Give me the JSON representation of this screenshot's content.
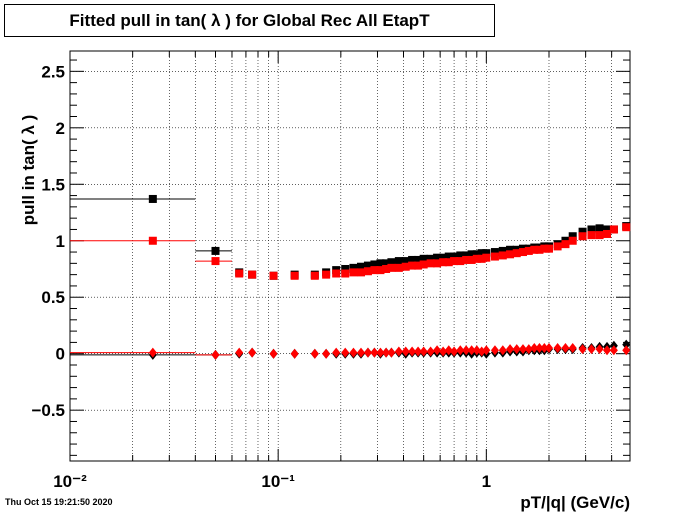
{
  "chart_data": {
    "type": "scatter",
    "title": "Fitted pull in tan( λ ) for Global Rec All EtapT",
    "xlabel": "pT/|q| (GeV/c)",
    "ylabel": "pull in tan( λ )",
    "x_scale": "log",
    "xlim": [
      0.01,
      4.9
    ],
    "ylim": [
      -0.95,
      2.68
    ],
    "grid": true,
    "x_tick_labels": [
      "10⁻²",
      "10⁻¹",
      "1"
    ],
    "y_ticks": [
      -0.5,
      0,
      0.5,
      1,
      1.5,
      2,
      2.5
    ],
    "y_tick_labels": [
      "−0.5",
      "0",
      "0.5",
      "1",
      "1.5",
      "2",
      "2.5"
    ],
    "series": [
      {
        "color": "#000000",
        "marker": "square",
        "x": [
          0.025,
          0.05,
          0.065,
          0.075,
          0.095,
          0.12,
          0.15,
          0.17,
          0.19,
          0.21,
          0.23,
          0.25,
          0.27,
          0.29,
          0.31,
          0.33,
          0.35,
          0.38,
          0.41,
          0.44,
          0.47,
          0.5,
          0.54,
          0.58,
          0.62,
          0.66,
          0.7,
          0.75,
          0.8,
          0.85,
          0.9,
          0.95,
          1.0,
          1.1,
          1.2,
          1.3,
          1.4,
          1.5,
          1.6,
          1.7,
          1.8,
          1.9,
          2.0,
          2.2,
          2.4,
          2.6,
          2.9,
          3.2,
          3.5,
          3.8,
          4.1,
          4.7
        ],
        "y": [
          1.37,
          0.91,
          0.72,
          0.7,
          0.69,
          0.7,
          0.7,
          0.72,
          0.74,
          0.75,
          0.76,
          0.77,
          0.78,
          0.79,
          0.8,
          0.8,
          0.81,
          0.82,
          0.82,
          0.83,
          0.83,
          0.84,
          0.84,
          0.85,
          0.85,
          0.86,
          0.86,
          0.87,
          0.87,
          0.88,
          0.88,
          0.89,
          0.89,
          0.9,
          0.91,
          0.92,
          0.92,
          0.93,
          0.93,
          0.94,
          0.94,
          0.95,
          0.95,
          0.97,
          1.0,
          1.04,
          1.08,
          1.1,
          1.11,
          1.1,
          1.1,
          1.13
        ],
        "xerr_first": [
          0.01,
          0.04
        ],
        "xerr_second": [
          0.04,
          0.06
        ]
      },
      {
        "color": "#ff0000",
        "marker": "square",
        "x": [
          0.025,
          0.05,
          0.065,
          0.075,
          0.095,
          0.12,
          0.15,
          0.17,
          0.19,
          0.21,
          0.23,
          0.25,
          0.27,
          0.29,
          0.31,
          0.33,
          0.35,
          0.38,
          0.41,
          0.44,
          0.47,
          0.5,
          0.54,
          0.58,
          0.62,
          0.66,
          0.7,
          0.75,
          0.8,
          0.85,
          0.9,
          0.95,
          1.0,
          1.1,
          1.2,
          1.3,
          1.4,
          1.5,
          1.6,
          1.7,
          1.8,
          1.9,
          2.0,
          2.2,
          2.4,
          2.6,
          2.9,
          3.2,
          3.5,
          3.8,
          4.1,
          4.7
        ],
        "y": [
          1.0,
          0.82,
          0.71,
          0.7,
          0.69,
          0.69,
          0.69,
          0.7,
          0.71,
          0.71,
          0.72,
          0.72,
          0.73,
          0.74,
          0.74,
          0.75,
          0.76,
          0.76,
          0.77,
          0.78,
          0.78,
          0.79,
          0.8,
          0.8,
          0.81,
          0.81,
          0.82,
          0.82,
          0.83,
          0.83,
          0.84,
          0.84,
          0.85,
          0.86,
          0.87,
          0.88,
          0.89,
          0.9,
          0.91,
          0.92,
          0.92,
          0.93,
          0.93,
          0.95,
          0.97,
          1.0,
          1.04,
          1.05,
          1.05,
          1.06,
          1.1,
          1.12
        ],
        "xerr_first": [
          0.01,
          0.04
        ],
        "xerr_second": [
          0.04,
          0.06
        ]
      },
      {
        "color": "#000000",
        "marker": "diamond",
        "x": [
          0.025,
          0.05,
          0.065,
          0.075,
          0.095,
          0.12,
          0.15,
          0.17,
          0.19,
          0.21,
          0.23,
          0.25,
          0.27,
          0.29,
          0.31,
          0.33,
          0.35,
          0.38,
          0.41,
          0.44,
          0.47,
          0.5,
          0.54,
          0.58,
          0.62,
          0.66,
          0.7,
          0.75,
          0.8,
          0.85,
          0.9,
          0.95,
          1.0,
          1.1,
          1.2,
          1.3,
          1.4,
          1.5,
          1.6,
          1.7,
          1.8,
          1.9,
          2.0,
          2.2,
          2.4,
          2.6,
          2.9,
          3.2,
          3.5,
          3.8,
          4.1,
          4.7
        ],
        "y": [
          -0.01,
          -0.01,
          0.0,
          0.01,
          0.0,
          0.0,
          0.0,
          0.0,
          0.0,
          0.0,
          0.0,
          0.0,
          0.01,
          0.01,
          0.0,
          0.01,
          0.01,
          0.01,
          0.0,
          0.01,
          0.01,
          0.01,
          0.01,
          0.01,
          0.01,
          0.01,
          0.01,
          0.01,
          0.01,
          0.0,
          0.01,
          0.01,
          0.0,
          0.01,
          0.01,
          0.02,
          0.02,
          0.02,
          0.03,
          0.03,
          0.03,
          0.03,
          0.04,
          0.04,
          0.04,
          0.04,
          0.05,
          0.05,
          0.06,
          0.06,
          0.07,
          0.08
        ],
        "xerr_first": [
          0.01,
          0.04
        ],
        "xerr_second": [
          0.04,
          0.06
        ]
      },
      {
        "color": "#ff0000",
        "marker": "diamond",
        "x": [
          0.025,
          0.05,
          0.065,
          0.075,
          0.095,
          0.12,
          0.15,
          0.17,
          0.19,
          0.21,
          0.23,
          0.25,
          0.27,
          0.29,
          0.31,
          0.33,
          0.35,
          0.38,
          0.41,
          0.44,
          0.47,
          0.5,
          0.54,
          0.58,
          0.62,
          0.66,
          0.7,
          0.75,
          0.8,
          0.85,
          0.9,
          0.95,
          1.0,
          1.1,
          1.2,
          1.3,
          1.4,
          1.5,
          1.6,
          1.7,
          1.8,
          1.9,
          2.0,
          2.2,
          2.4,
          2.6,
          2.9,
          3.2,
          3.5,
          3.8,
          4.1,
          4.7
        ],
        "y": [
          0.01,
          -0.01,
          0.01,
          0.01,
          0.0,
          0.0,
          0.0,
          0.0,
          0.01,
          0.01,
          0.01,
          0.01,
          0.01,
          0.01,
          0.01,
          0.01,
          0.01,
          0.02,
          0.02,
          0.02,
          0.02,
          0.02,
          0.02,
          0.03,
          0.02,
          0.03,
          0.02,
          0.03,
          0.03,
          0.03,
          0.03,
          0.02,
          0.03,
          0.03,
          0.03,
          0.04,
          0.04,
          0.04,
          0.04,
          0.05,
          0.05,
          0.05,
          0.05,
          0.05,
          0.05,
          0.05,
          0.04,
          0.04,
          0.04,
          0.03,
          0.03,
          0.03
        ],
        "xerr_first": [
          0.01,
          0.04
        ],
        "xerr_second": [
          0.04,
          0.06
        ]
      }
    ]
  },
  "datestamp": "Thu Oct 15 19:21:50 2020"
}
